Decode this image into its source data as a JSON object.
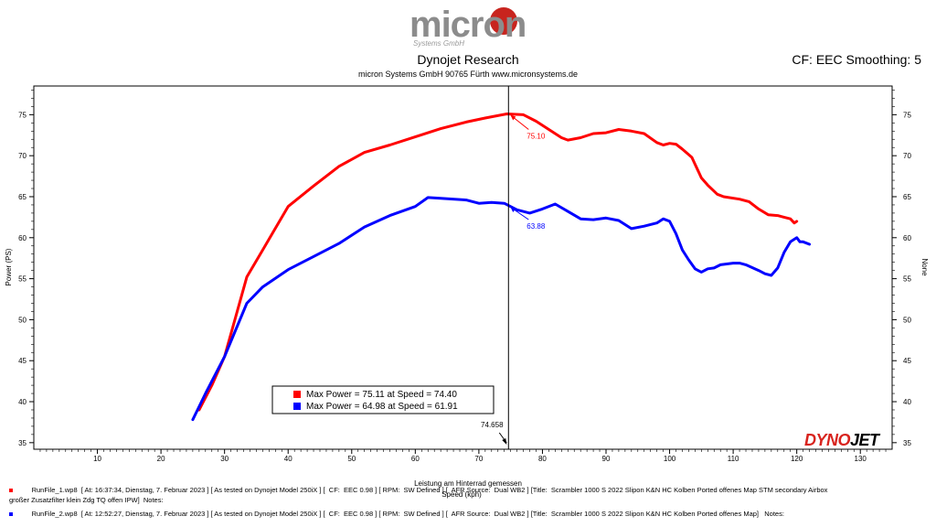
{
  "header": {
    "logo_text": "micron",
    "logo_subtext": "Systems GmbH",
    "title": "Dynojet Research",
    "subtitle": "micron Systems GmbH  90765 Fürth www.micronsystems.de",
    "smoothing": "CF: EEC Smoothing: 5"
  },
  "brand": {
    "dynojet_a": "DYNO",
    "dynojet_b": "JET",
    "dynojet_color": "#d8231d"
  },
  "chart_data": {
    "type": "line",
    "xlabel": "Leistung am Hinterrad gemessen",
    "xlabel2": "Speed (kph)",
    "ylabel_left": "Power (PS)",
    "ylabel_right": "None",
    "xlim": [
      0,
      135
    ],
    "ylim": [
      34.2,
      78.5
    ],
    "x_ticks": [
      10,
      20,
      30,
      40,
      50,
      60,
      70,
      80,
      90,
      100,
      110,
      120,
      130
    ],
    "y_ticks": [
      35,
      40,
      45,
      50,
      55,
      60,
      65,
      70,
      75
    ],
    "cursor_x": 74.658,
    "cursor_label": "74.658",
    "series": [
      {
        "color": "#ff0000",
        "cursor_value": "75.10",
        "points": [
          [
            26,
            39
          ],
          [
            28,
            42
          ],
          [
            30,
            45.5
          ],
          [
            33.5,
            55.2
          ],
          [
            36,
            58.5
          ],
          [
            40,
            63.8
          ],
          [
            44,
            66.3
          ],
          [
            48,
            68.7
          ],
          [
            52,
            70.4
          ],
          [
            56,
            71.3
          ],
          [
            60,
            72.3
          ],
          [
            64,
            73.3
          ],
          [
            68,
            74.1
          ],
          [
            71,
            74.6
          ],
          [
            74.4,
            75.1
          ],
          [
            77,
            75
          ],
          [
            79,
            74.2
          ],
          [
            81,
            73.2
          ],
          [
            83,
            72.2
          ],
          [
            84,
            71.9
          ],
          [
            86,
            72.2
          ],
          [
            88,
            72.7
          ],
          [
            90,
            72.8
          ],
          [
            92,
            73.2
          ],
          [
            94,
            73.0
          ],
          [
            96,
            72.7
          ],
          [
            98,
            71.6
          ],
          [
            99,
            71.3
          ],
          [
            100,
            71.5
          ],
          [
            101,
            71.4
          ],
          [
            102,
            70.8
          ],
          [
            103.5,
            69.8
          ],
          [
            105,
            67.3
          ],
          [
            106,
            66.4
          ],
          [
            107.5,
            65.3
          ],
          [
            108.5,
            65.0
          ],
          [
            111,
            64.7
          ],
          [
            112.5,
            64.4
          ],
          [
            114,
            63.5
          ],
          [
            115.5,
            62.8
          ],
          [
            117,
            62.7
          ],
          [
            118,
            62.5
          ],
          [
            119,
            62.3
          ],
          [
            119.6,
            61.8
          ],
          [
            120,
            62.0
          ]
        ]
      },
      {
        "color": "#0000ff",
        "cursor_value": "63.88",
        "points": [
          [
            25,
            37.8
          ],
          [
            27,
            41
          ],
          [
            30,
            45.5
          ],
          [
            33.5,
            52
          ],
          [
            36,
            54
          ],
          [
            40,
            56.1
          ],
          [
            44,
            57.7
          ],
          [
            48,
            59.3
          ],
          [
            52,
            61.3
          ],
          [
            56,
            62.7
          ],
          [
            60,
            63.8
          ],
          [
            62,
            64.9
          ],
          [
            64,
            64.8
          ],
          [
            68,
            64.6
          ],
          [
            70,
            64.2
          ],
          [
            72,
            64.3
          ],
          [
            74,
            64.2
          ],
          [
            76,
            63.4
          ],
          [
            78,
            63.0
          ],
          [
            80,
            63.5
          ],
          [
            82,
            64.1
          ],
          [
            84,
            63.2
          ],
          [
            86,
            62.3
          ],
          [
            88,
            62.2
          ],
          [
            90,
            62.4
          ],
          [
            92,
            62.1
          ],
          [
            94,
            61.1
          ],
          [
            96,
            61.4
          ],
          [
            98,
            61.8
          ],
          [
            99,
            62.3
          ],
          [
            100,
            62.0
          ],
          [
            101,
            60.5
          ],
          [
            102,
            58.5
          ],
          [
            103,
            57.3
          ],
          [
            104,
            56.2
          ],
          [
            105,
            55.8
          ],
          [
            106,
            56.2
          ],
          [
            107,
            56.3
          ],
          [
            108,
            56.7
          ],
          [
            110,
            56.9
          ],
          [
            111,
            56.9
          ],
          [
            112,
            56.7
          ],
          [
            114,
            56.0
          ],
          [
            115,
            55.6
          ],
          [
            116,
            55.4
          ],
          [
            117,
            56.3
          ],
          [
            118,
            58.2
          ],
          [
            119,
            59.5
          ],
          [
            120,
            60.0
          ],
          [
            120.5,
            59.5
          ],
          [
            121,
            59.5
          ],
          [
            122,
            59.2
          ]
        ]
      }
    ],
    "legend": [
      {
        "label": "Max Power = 75.11 at Speed = 74.40",
        "color": "#ff0000"
      },
      {
        "label": "Max Power = 64.98 at Speed = 61.91",
        "color": "#0000ff"
      }
    ]
  },
  "footer": {
    "run1_line1": "RunFile_1.wp8  [ At: 16:37:34, Dienstag, 7. Februar 2023 ] [ As tested on Dynojet Model 250iX ] [  CF:  EEC 0.98 ] [ RPM:  SW Defined ] [  AFR Source:  Dual WB2 ] [Title:  Scrambler 1000 S 2022 Slipon K&N HC Kolben Ported offenes Map STM secondary Airbox",
    "run1_line2": "großer Zusatzfilter klein Zdg TQ offen IPW]  Notes:",
    "run2_line1": "RunFile_2.wp8  [ At: 12:52:27, Dienstag, 7. Februar 2023 ] [ As tested on Dynojet Model 250iX ] [  CF:  EEC 0.98 ] [ RPM:  SW Defined ] [  AFR Source:  Dual WB2 ] [Title:  Scrambler 1000 S 2022 Slipon K&N HC Kolben Ported offenes Map]   Notes:"
  }
}
